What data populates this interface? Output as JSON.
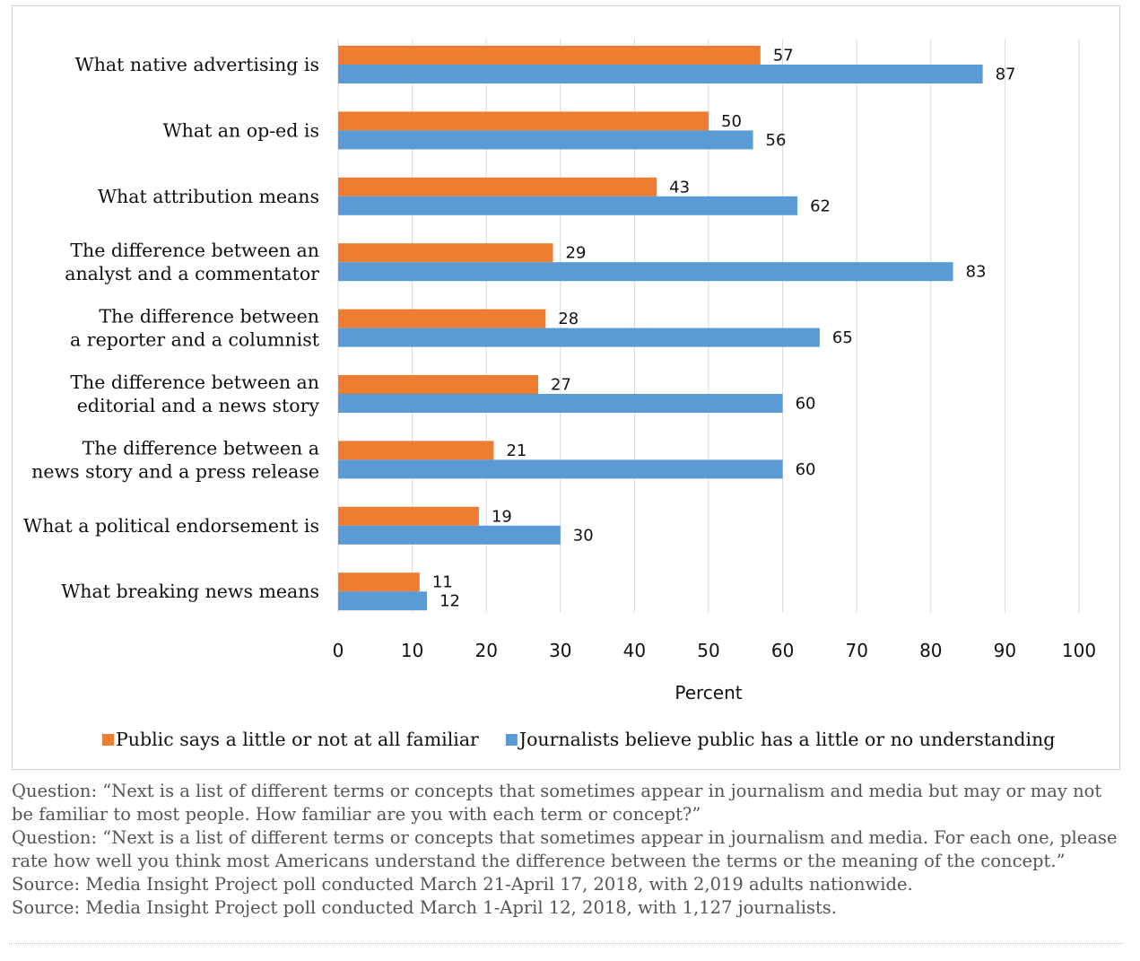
{
  "chart_data": {
    "type": "bar",
    "orientation": "horizontal",
    "categories": [
      [
        "What native advertising is"
      ],
      [
        "What an op-ed is"
      ],
      [
        "What attribution means"
      ],
      [
        "The difference between an",
        "analyst and a commentator"
      ],
      [
        "The difference between",
        "a reporter and a columnist"
      ],
      [
        "The difference between an",
        "editorial and a news story"
      ],
      [
        "The difference between a",
        "news story and a press release"
      ],
      [
        "What a political endorsement is"
      ],
      [
        "What breaking news means"
      ]
    ],
    "series": [
      {
        "name": "Public says a little or not at all familiar",
        "color": "#ED7D31",
        "values": [
          57,
          50,
          43,
          29,
          28,
          27,
          21,
          19,
          11
        ]
      },
      {
        "name": "Journalists believe public has a little or no understanding",
        "color": "#5B9BD5",
        "values": [
          87,
          56,
          62,
          83,
          65,
          60,
          60,
          30,
          12
        ]
      }
    ],
    "xlim": [
      0,
      100
    ],
    "xticks": [
      0,
      10,
      20,
      30,
      40,
      50,
      60,
      70,
      80,
      90,
      100
    ],
    "xlabel": "Percent",
    "ylabel": "",
    "title": "",
    "grid": "vertical",
    "legend": "bottom"
  },
  "notes": [
    "Question: “Next is a list of different terms or concepts that sometimes appear in journalism and media but may or may not be familiar to most people. How familiar are you with each term or concept?”",
    "Question: “Next is a list of different terms or concepts that sometimes appear in journalism and media. For each one, please rate how well you think most Americans understand the difference between the terms or the meaning of the concept.”",
    "Source: Media Insight Project poll conducted March 21-April 17, 2018, with 2,019 adults nationwide.",
    "Source: Media Insight Project poll conducted March 1-April 12, 2018, with 1,127 journalists."
  ]
}
